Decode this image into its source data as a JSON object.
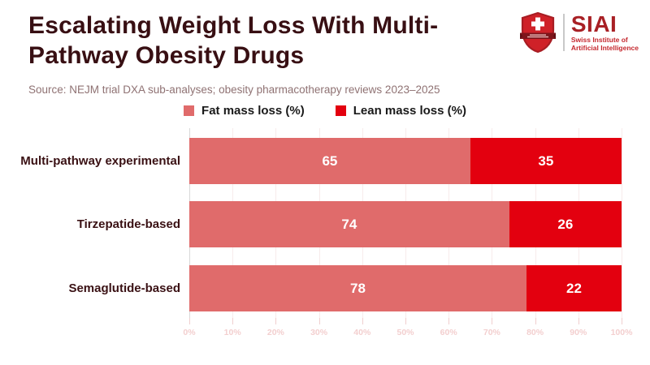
{
  "header": {
    "title_line1": "Escalating Weight Loss With Multi-",
    "title_line2": "Pathway Obesity Drugs",
    "source": "Source: NEJM trial DXA sub-analyses; obesity pharmacotherapy reviews 2023–2025"
  },
  "logo": {
    "acronym": "SIAI",
    "subtitle_line1": "Swiss Institute of",
    "subtitle_line2": "Artificial Intelligence",
    "shield_icon": "swiss-shield-icon"
  },
  "chart_data": {
    "type": "bar",
    "orientation": "horizontal",
    "stacked": true,
    "categories": [
      "Multi-pathway experimental",
      "Tirzepatide-based",
      "Semaglutide-based"
    ],
    "series": [
      {
        "name": "Fat mass loss (%)",
        "color": "#e06b6b",
        "values": [
          65,
          74,
          78
        ]
      },
      {
        "name": "Lean mass loss (%)",
        "color": "#e3000f",
        "values": [
          35,
          26,
          22
        ]
      }
    ],
    "x_axis": {
      "min": 0,
      "max": 100,
      "ticks": [
        "0%",
        "10%",
        "20%",
        "30%",
        "40%",
        "50%",
        "60%",
        "70%",
        "80%",
        "90%",
        "100%"
      ]
    },
    "grid": true,
    "legend_position": "top-center",
    "value_labels": "inside-center",
    "style": {
      "grid_color": "#f7ebeb",
      "axis_line_color": "#d8d8d8",
      "tick_label_color": "#f3cfcf",
      "category_label_color": "#3a1114",
      "value_label_color": "#ffffff",
      "title_color": "#380f13"
    }
  }
}
